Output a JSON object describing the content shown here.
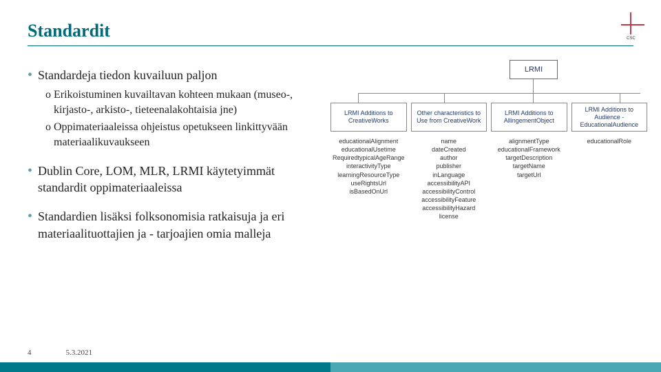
{
  "title": "Standardit",
  "logo_text": "CSC",
  "colors": {
    "accent": "#006a7a",
    "bullet": "#5aa0aa",
    "box_text": "#223a6a",
    "box_border": "#888888",
    "bar_left": "#007a8a",
    "bar_right": "#4aa8b4"
  },
  "bullets": [
    {
      "text": "Standardeja tiedon kuvailuun paljon",
      "subs": [
        "Erikoistuminen kuvailtavan kohteen mukaan (museo-, kirjasto-, arkisto-, tieteenalakohtaisia jne)",
        "Oppimateriaaleissa ohjeistus opetukseen linkittyvään materiaalikuvaukseen"
      ]
    },
    {
      "text": "Dublin Core, LOM, MLR, LRMI käytetyimmät standardit oppimateriaaleissa",
      "subs": []
    },
    {
      "text": "Standardien lisäksi folksonomisia ratkaisuja ja eri materiaalituottajien ja  - tarjoajien omia malleja",
      "subs": []
    }
  ],
  "diagram": {
    "top": "LRMI",
    "mid": [
      "LRMI Additions to CreativeWorks",
      "Other characteristics to Use from CreativeWork",
      "LRMI Additions to AllingementObject",
      "LRMI Additions to Audience - EducationalAudience"
    ],
    "lists": [
      [
        "educationalAlignment",
        "educationalUsetime",
        "RequiredtypicalAgeRange",
        "interactivityType",
        "learningResourceType",
        "useRightsUrl",
        "isBasedOnUrl"
      ],
      [
        "name",
        "dateCreated",
        "author",
        "publisher",
        "inLanguage",
        "accessibilityAPI",
        "accessibilityControl",
        "accessibilityFeature",
        "accessibilityHazard",
        "license"
      ],
      [
        "alignmentType",
        "educationalFramework",
        "targetDescription",
        "targetName",
        "targetUrl"
      ],
      [
        "educationalRole"
      ]
    ]
  },
  "footer": {
    "page": "4",
    "date": "5.3.2021"
  }
}
